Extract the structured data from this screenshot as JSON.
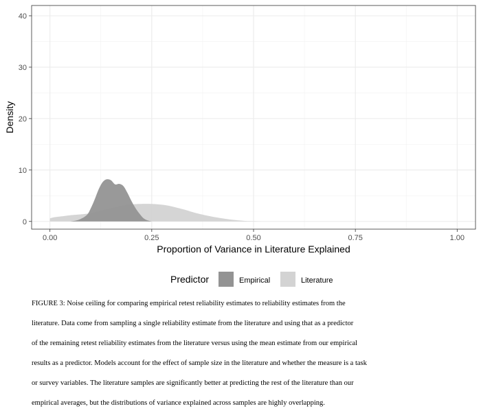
{
  "chart_data": {
    "type": "area",
    "xlabel": "Proportion of Variance in Literature Explained",
    "ylabel": "Density",
    "xlim": [
      -0.045,
      1.045
    ],
    "ylim": [
      -1.5,
      42
    ],
    "x_ticks": [
      0.0,
      0.25,
      0.5,
      0.75,
      1.0
    ],
    "x_tick_labels": [
      "0.00",
      "0.25",
      "0.50",
      "0.75",
      "1.00"
    ],
    "y_ticks": [
      0,
      10,
      20,
      30,
      40
    ],
    "y_tick_labels": [
      "0",
      "10",
      "20",
      "30",
      "40"
    ],
    "grid": true,
    "legend": {
      "title": "Predictor",
      "placement": "bottom",
      "entries": [
        "Empirical",
        "Literature"
      ]
    },
    "series": [
      {
        "name": "Literature",
        "color": "#d3d3d3",
        "x": [
          0.0,
          0.01,
          0.03,
          0.05,
          0.08,
          0.1,
          0.12,
          0.15,
          0.18,
          0.2,
          0.22,
          0.25,
          0.28,
          0.3,
          0.33,
          0.36,
          0.4,
          0.44,
          0.48,
          0.5,
          0.52
        ],
        "y": [
          0.6,
          0.8,
          1.0,
          1.2,
          1.4,
          1.6,
          2.0,
          2.6,
          3.1,
          3.3,
          3.4,
          3.4,
          3.2,
          2.9,
          2.3,
          1.6,
          0.9,
          0.4,
          0.1,
          0.05,
          0.0
        ]
      },
      {
        "name": "Empirical",
        "color": "#939393",
        "x": [
          0.05,
          0.07,
          0.09,
          0.1,
          0.11,
          0.12,
          0.13,
          0.14,
          0.15,
          0.16,
          0.17,
          0.18,
          0.19,
          0.2,
          0.21,
          0.22,
          0.23,
          0.24,
          0.25
        ],
        "y": [
          0.0,
          0.3,
          1.2,
          2.5,
          4.3,
          6.3,
          7.7,
          8.2,
          8.0,
          7.2,
          7.3,
          6.9,
          5.6,
          4.0,
          2.6,
          1.5,
          0.6,
          0.2,
          0.0
        ]
      }
    ]
  },
  "caption": {
    "lines": [
      "FIGURE 3: Noise ceiling for comparing empirical retest reliability estimates to reliability estimates from the",
      "literature. Data come from sampling a single reliability estimate from the literature and using that as a predictor",
      "of the remaining retest reliability estimates from the literature versus using the mean estimate from our empirical",
      "results as a predictor. Models account for the effect of sample size in the literature and whether the measure is a task",
      "or survey variables. The literature samples are significantly better at predicting the rest of the literature than our",
      "empirical averages, but the distributions of variance explained across samples are highly overlapping."
    ]
  }
}
